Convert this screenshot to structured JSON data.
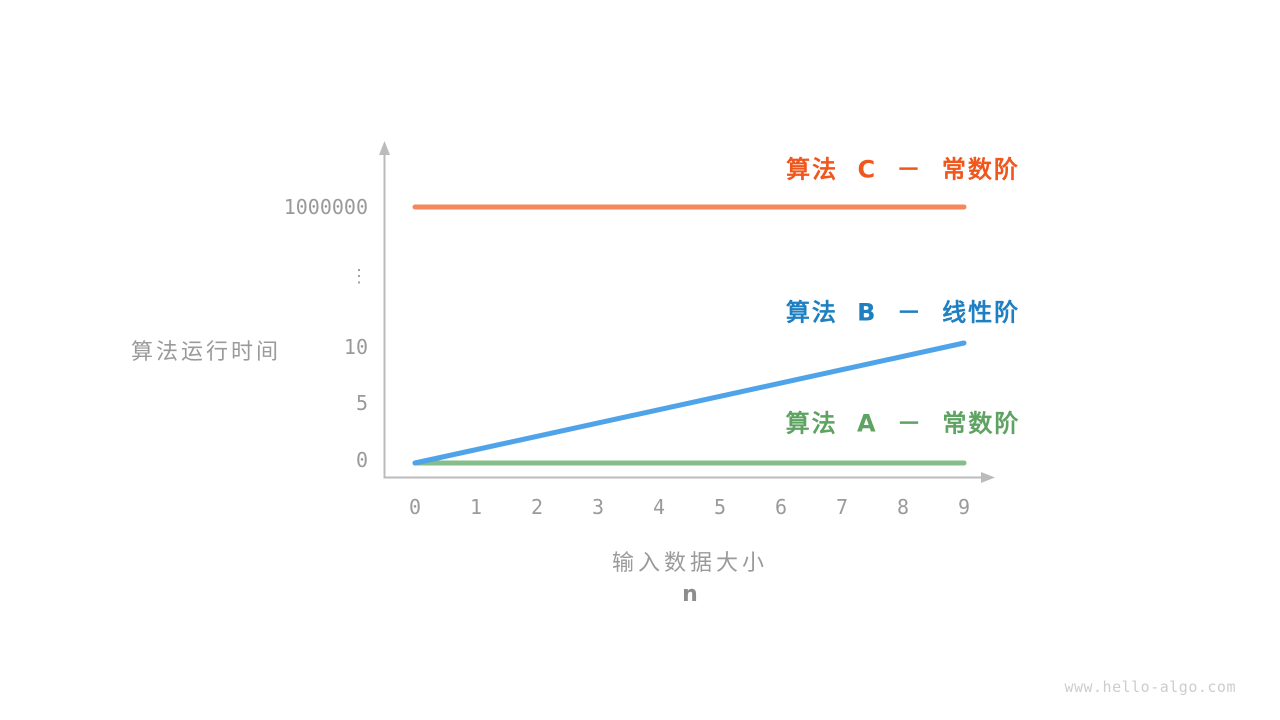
{
  "page": {
    "watermark": "www.hello-algo.com"
  },
  "chart_data": {
    "type": "line",
    "title": "",
    "ylabel": "算法运行时间",
    "xlabel": "输入数据大小",
    "xlabel_unit": "n",
    "x_ticks": [
      "0",
      "1",
      "2",
      "3",
      "4",
      "5",
      "6",
      "7",
      "8",
      "9"
    ],
    "y_ticks": [
      "1000000",
      "⋮",
      "10",
      "5",
      "0"
    ],
    "x_range": [
      0,
      9
    ],
    "grid": false,
    "series": [
      {
        "name": "algorithm-c",
        "label": "算法 C － 常数阶",
        "line_color": "#f5875a",
        "label_color": "#f0571d",
        "points": [
          [
            0,
            1000000
          ],
          [
            9,
            1000000
          ]
        ]
      },
      {
        "name": "algorithm-a",
        "label": "算法 A － 常数阶",
        "line_color": "#85be88",
        "label_color": "#5ea362",
        "points": [
          [
            0,
            0
          ],
          [
            9,
            0
          ]
        ]
      },
      {
        "name": "algorithm-b",
        "label": "算法 B － 线性阶",
        "line_color": "#4fa3e9",
        "label_color": "#1e7fc2",
        "points": [
          [
            0,
            0
          ],
          [
            9,
            10
          ]
        ]
      }
    ],
    "colors": {
      "axis": "#bbbbbb",
      "tick_text": "#9a9a9a",
      "watermark": "#cdcdcd"
    }
  }
}
